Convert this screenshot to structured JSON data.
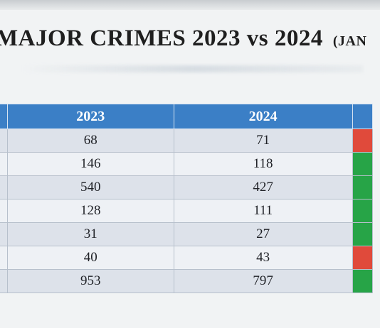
{
  "title": {
    "main": "MAJOR CRIMES  2023 vs 2024",
    "suffix": "(JAN"
  },
  "table": {
    "columns": [
      "",
      "2023",
      "2024",
      ""
    ],
    "rows": [
      {
        "y2023": "68",
        "y2024": "71",
        "status": "red"
      },
      {
        "y2023": "146",
        "y2024": "118",
        "status": "green"
      },
      {
        "y2023": "540",
        "y2024": "427",
        "status": "green"
      },
      {
        "y2023": "128",
        "y2024": "111",
        "status": "green"
      },
      {
        "y2023": "31",
        "y2024": "27",
        "status": "green"
      },
      {
        "y2023": "40",
        "y2024": "43",
        "status": "red"
      },
      {
        "y2023": "953",
        "y2024": "797",
        "status": "green"
      }
    ]
  },
  "colors": {
    "header_blue": "#3b7fc6",
    "increase_red": "#e04a3b",
    "decrease_green": "#27a447"
  }
}
